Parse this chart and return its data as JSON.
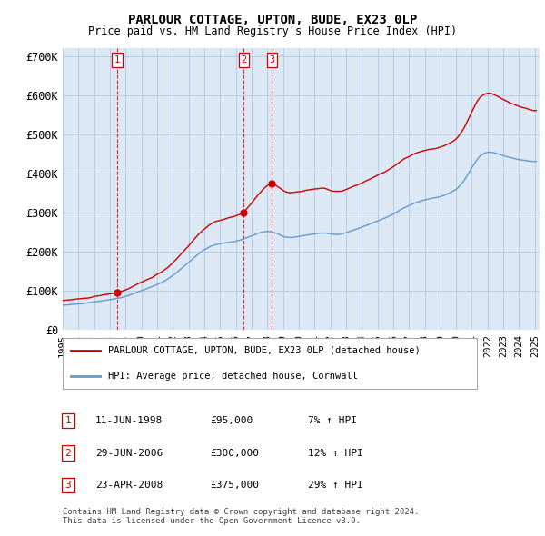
{
  "title": "PARLOUR COTTAGE, UPTON, BUDE, EX23 0LP",
  "subtitle": "Price paid vs. HM Land Registry's House Price Index (HPI)",
  "red_label": "PARLOUR COTTAGE, UPTON, BUDE, EX23 0LP (detached house)",
  "blue_label": "HPI: Average price, detached house, Cornwall",
  "footer1": "Contains HM Land Registry data © Crown copyright and database right 2024.",
  "footer2": "This data is licensed under the Open Government Licence v3.0.",
  "transactions": [
    {
      "num": 1,
      "date": "11-JUN-1998",
      "price": "£95,000",
      "hpi": "7% ↑ HPI",
      "year": 1998.45
    },
    {
      "num": 2,
      "date": "29-JUN-2006",
      "price": "£300,000",
      "hpi": "12% ↑ HPI",
      "year": 2006.5
    },
    {
      "num": 3,
      "date": "23-APR-2008",
      "price": "£375,000",
      "hpi": "29% ↑ HPI",
      "year": 2008.29
    }
  ],
  "transaction_values": [
    95000,
    300000,
    375000
  ],
  "ylim": [
    0,
    720000
  ],
  "yticks": [
    0,
    100000,
    200000,
    300000,
    400000,
    500000,
    600000,
    700000
  ],
  "ytick_labels": [
    "£0",
    "£100K",
    "£200K",
    "£300K",
    "£400K",
    "£500K",
    "£600K",
    "£700K"
  ],
  "background_color": "#ffffff",
  "chart_bg_color": "#dce9f5",
  "grid_color": "#b0c8e0",
  "red_color": "#cc0000",
  "blue_color": "#6699cc",
  "vline_color": "#cc0000"
}
